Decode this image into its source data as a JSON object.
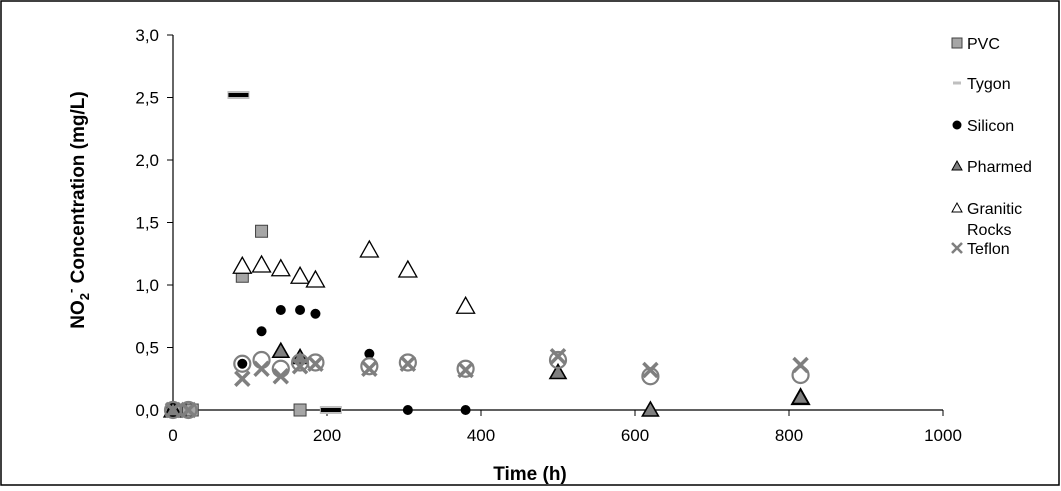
{
  "chart_data": {
    "type": "scatter",
    "title": "",
    "xlabel": "Time (h)",
    "ylabel": {
      "main": "NO",
      "sub": "2",
      "sup": "-",
      "rest": " Concentration (mg/L)"
    },
    "xlim": [
      0,
      1000
    ],
    "ylim": [
      0,
      3.0
    ],
    "x_ticks": [
      {
        "value": 0,
        "label": "0"
      },
      {
        "value": 200,
        "label": "200"
      },
      {
        "value": 400,
        "label": "400"
      },
      {
        "value": 600,
        "label": "600"
      },
      {
        "value": 800,
        "label": "800"
      },
      {
        "value": 1000,
        "label": "1000"
      }
    ],
    "y_ticks": [
      {
        "value": 0,
        "label": "0,0"
      },
      {
        "value": 0.5,
        "label": "0,5"
      },
      {
        "value": 1.0,
        "label": "1,0"
      },
      {
        "value": 1.5,
        "label": "1,5"
      },
      {
        "value": 2.0,
        "label": "2,0"
      },
      {
        "value": 2.5,
        "label": "2,5"
      },
      {
        "value": 3.0,
        "label": "3,0"
      }
    ],
    "grid": false,
    "legend_position": "right",
    "series": [
      {
        "name": "PVC",
        "marker": "square",
        "color": "#a6a6a6",
        "points": [
          [
            0,
            0
          ],
          [
            5,
            0
          ],
          [
            20,
            0
          ],
          [
            25,
            0
          ],
          [
            90,
            1.07
          ],
          [
            115,
            1.43
          ],
          [
            165,
            0
          ]
        ]
      },
      {
        "name": "Tygon",
        "marker": "dash",
        "color": "#a6a6a6",
        "points": [
          [
            85,
            2.52
          ],
          [
            205,
            0
          ]
        ]
      },
      {
        "name": "Silicon",
        "marker": "circle",
        "color": "#000000",
        "points": [
          [
            0,
            0
          ],
          [
            90,
            0.37
          ],
          [
            115,
            0.63
          ],
          [
            140,
            0.8
          ],
          [
            165,
            0.8
          ],
          [
            185,
            0.77
          ],
          [
            255,
            0.45
          ],
          [
            305,
            0
          ],
          [
            380,
            0
          ],
          [
            815,
            0.1
          ]
        ]
      },
      {
        "name": "Pharmed",
        "marker": "filled-triangle",
        "color": "#7f7f7f",
        "points": [
          [
            0,
            0
          ],
          [
            140,
            0.47
          ],
          [
            165,
            0.42
          ],
          [
            500,
            0.3
          ],
          [
            620,
            0
          ],
          [
            815,
            0.1
          ]
        ]
      },
      {
        "name": "Granitic Rocks",
        "legend_lines": [
          "Granitic",
          "Rocks"
        ],
        "marker": "open-triangle",
        "color": "#000000",
        "points": [
          [
            0,
            0
          ],
          [
            90,
            1.15
          ],
          [
            115,
            1.16
          ],
          [
            140,
            1.13
          ],
          [
            165,
            1.07
          ],
          [
            185,
            1.04
          ],
          [
            255,
            1.28
          ],
          [
            305,
            1.12
          ],
          [
            380,
            0.83
          ],
          [
            815,
            0.1
          ]
        ]
      },
      {
        "name": "Teflon",
        "marker": "cross",
        "color": "#7f7f7f",
        "points": [
          [
            0,
            0
          ],
          [
            20,
            0
          ],
          [
            90,
            0.25
          ],
          [
            115,
            0.33
          ],
          [
            140,
            0.27
          ],
          [
            165,
            0.35
          ],
          [
            185,
            0.37
          ],
          [
            255,
            0.33
          ],
          [
            305,
            0.37
          ],
          [
            380,
            0.32
          ],
          [
            500,
            0.43
          ],
          [
            620,
            0.32
          ],
          [
            815,
            0.36
          ]
        ]
      },
      {
        "name": "",
        "marker": "open-circle",
        "color": "#7f7f7f",
        "points": [
          [
            0,
            0
          ],
          [
            20,
            0
          ],
          [
            90,
            0.37
          ],
          [
            115,
            0.4
          ],
          [
            140,
            0.33
          ],
          [
            165,
            0.38
          ],
          [
            185,
            0.38
          ],
          [
            255,
            0.35
          ],
          [
            305,
            0.38
          ],
          [
            380,
            0.33
          ],
          [
            500,
            0.4
          ],
          [
            620,
            0.27
          ],
          [
            815,
            0.28
          ]
        ]
      }
    ]
  }
}
